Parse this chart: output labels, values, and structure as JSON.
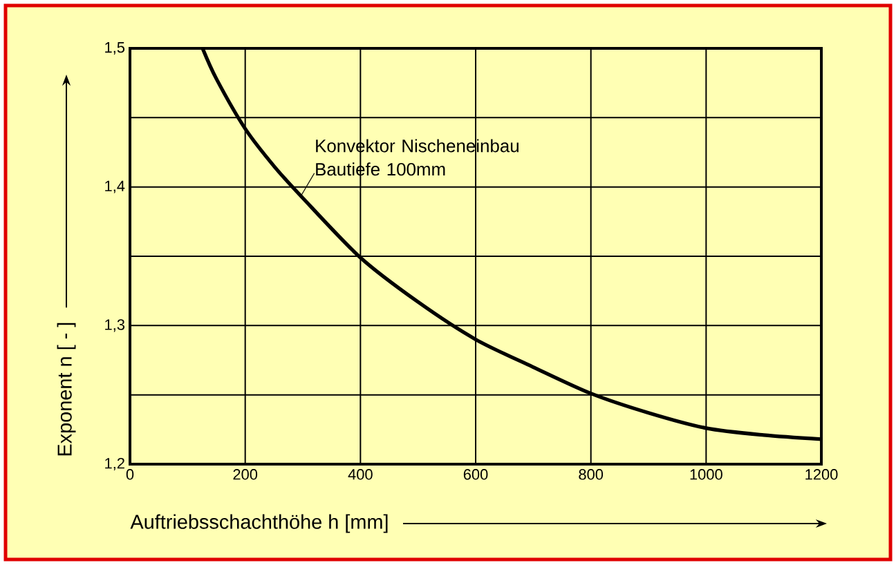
{
  "chart_data": {
    "type": "line",
    "xlabel": "Auftriebsschachthöhe h  [mm]",
    "ylabel": "Exponent n [ - ]",
    "x": [
      126,
      150,
      200,
      250,
      300,
      400,
      500,
      600,
      700,
      800,
      900,
      1000,
      1100,
      1200
    ],
    "series": [
      {
        "color": "#000000",
        "values": [
          1.5,
          1.478,
          1.442,
          1.415,
          1.392,
          1.349,
          1.317,
          1.29,
          1.27,
          1.251,
          1.237,
          1.226,
          1.221,
          1.218
        ]
      }
    ],
    "xlim": [
      0,
      1200
    ],
    "ylim": [
      1.2,
      1.5
    ],
    "xticks": [
      0,
      200,
      400,
      600,
      800,
      1000,
      1200
    ],
    "yticks": [
      {
        "value": 1.2,
        "label": "1,2"
      },
      {
        "value": 1.3,
        "label": "1,3"
      },
      {
        "value": 1.4,
        "label": "1,4"
      },
      {
        "value": 1.5,
        "label": "1,5"
      }
    ],
    "grid": true,
    "marker": "none",
    "line_style": "solid",
    "annotations": [
      {
        "text": "Konvektor Nischeneinbau Bautiefe 100mm",
        "x": 296,
        "y": 1.393
      }
    ]
  }
}
